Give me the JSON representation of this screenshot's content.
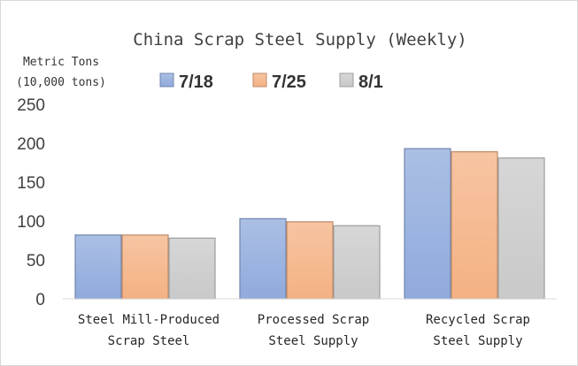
{
  "chart_data": {
    "type": "bar",
    "title": "China Scrap Steel Supply (Weekly)",
    "ylabel": [
      "Metric Tons",
      "(10,000 tons)"
    ],
    "xlabel": "",
    "categories": [
      [
        "Steel Mill-Produced",
        "Scrap Steel"
      ],
      [
        "Processed Scrap",
        "Steel Supply"
      ],
      [
        "Recycled Scrap",
        "Steel Supply"
      ]
    ],
    "series": [
      {
        "name": "7/18",
        "values": [
          82,
          103,
          193
        ],
        "color": "#8faadc"
      },
      {
        "name": "7/25",
        "values": [
          82,
          99,
          189
        ],
        "color": "#f4b183"
      },
      {
        "name": "8/1",
        "values": [
          78,
          94,
          181
        ],
        "color": "#c9c9c9"
      }
    ],
    "ylim": [
      0,
      250
    ],
    "yticks": [
      "0",
      "50",
      "100",
      "150",
      "200",
      "250"
    ],
    "grid": false,
    "legend": "top"
  }
}
